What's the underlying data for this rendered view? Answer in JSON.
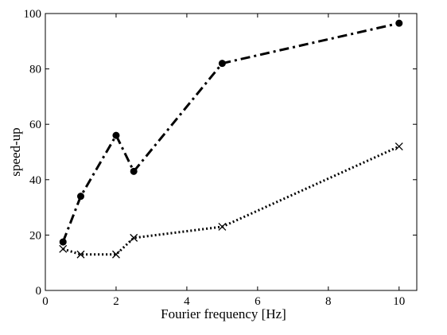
{
  "chart_data": {
    "type": "line",
    "xlabel": "Fourier frequency [Hz]",
    "ylabel": "speed-up",
    "xlim": [
      0,
      10.5
    ],
    "ylim": [
      0,
      100
    ],
    "xticks": [
      0,
      2,
      4,
      6,
      8,
      10
    ],
    "yticks": [
      0,
      20,
      40,
      60,
      80,
      100
    ],
    "grid": false,
    "series": [
      {
        "style": "dash-dot",
        "marker": "filled-circle",
        "color": "#000000",
        "points": [
          {
            "x": 0.5,
            "y": 17.5
          },
          {
            "x": 1,
            "y": 34
          },
          {
            "x": 2,
            "y": 56
          },
          {
            "x": 2.5,
            "y": 43
          },
          {
            "x": 5,
            "y": 82
          },
          {
            "x": 10,
            "y": 96.5
          }
        ]
      },
      {
        "style": "dotted",
        "marker": "x",
        "color": "#000000",
        "points": [
          {
            "x": 0.5,
            "y": 15
          },
          {
            "x": 1,
            "y": 13
          },
          {
            "x": 2,
            "y": 13
          },
          {
            "x": 2.5,
            "y": 19
          },
          {
            "x": 5,
            "y": 23
          },
          {
            "x": 10,
            "y": 52
          }
        ]
      }
    ]
  }
}
